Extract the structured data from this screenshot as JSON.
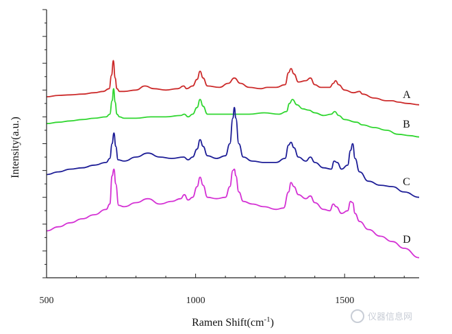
{
  "chart_data": {
    "type": "line",
    "title": "",
    "xlabel": "Ramen Shift(cm",
    "xlabel_sup": "-1",
    "xlabel_tail": ")",
    "ylabel": "Intensity(a.u.)",
    "xlim": [
      500,
      1750
    ],
    "ylim": [
      0,
      10
    ],
    "x_ticks": [
      500,
      1000,
      1500
    ],
    "y_minor_ticks": 20,
    "grid": false,
    "legend": "inline-right",
    "colors": {
      "A": "#cc2a2a",
      "B": "#2fd62f",
      "C": "#1c1c96",
      "D": "#d430d4"
    },
    "series": [
      {
        "name": "A",
        "x": [
          500,
          540,
          580,
          620,
          660,
          690,
          710,
          718,
          724,
          730,
          736,
          745,
          760,
          800,
          830,
          860,
          900,
          940,
          960,
          970,
          990,
          1005,
          1015,
          1025,
          1040,
          1080,
          1110,
          1130,
          1150,
          1180,
          1220,
          1240,
          1270,
          1300,
          1312,
          1320,
          1330,
          1345,
          1370,
          1385,
          1400,
          1420,
          1450,
          1462,
          1470,
          1480,
          1500,
          1530,
          1550,
          1560,
          1600,
          1640,
          1660,
          1680,
          1710,
          1750
        ],
        "y": [
          6.75,
          6.8,
          6.82,
          6.85,
          6.9,
          6.95,
          7.05,
          7.55,
          8.1,
          7.45,
          7.05,
          6.95,
          6.95,
          7.0,
          7.15,
          7.05,
          7.0,
          7.05,
          7.15,
          7.05,
          7.15,
          7.4,
          7.7,
          7.45,
          7.15,
          7.1,
          7.25,
          7.45,
          7.25,
          7.1,
          7.05,
          7.1,
          7.1,
          7.2,
          7.65,
          7.8,
          7.6,
          7.3,
          7.35,
          7.45,
          7.2,
          7.1,
          7.1,
          7.25,
          7.35,
          7.2,
          7.0,
          6.9,
          6.95,
          6.85,
          6.7,
          6.6,
          6.6,
          6.55,
          6.5,
          6.45
        ]
      },
      {
        "name": "B",
        "x": [
          500,
          540,
          580,
          620,
          660,
          700,
          712,
          720,
          725,
          730,
          736,
          745,
          760,
          800,
          850,
          900,
          950,
          962,
          975,
          990,
          1005,
          1015,
          1025,
          1040,
          1080,
          1130,
          1180,
          1230,
          1280,
          1305,
          1315,
          1325,
          1340,
          1360,
          1380,
          1400,
          1430,
          1455,
          1467,
          1480,
          1500,
          1540,
          1560,
          1600,
          1640,
          1680,
          1720,
          1750
        ],
        "y": [
          5.75,
          5.8,
          5.85,
          5.9,
          5.95,
          6.0,
          6.1,
          6.6,
          7.05,
          6.55,
          6.1,
          6.0,
          5.95,
          5.95,
          6.0,
          6.0,
          6.05,
          6.1,
          6.0,
          6.1,
          6.35,
          6.65,
          6.4,
          6.1,
          6.1,
          6.1,
          6.1,
          6.15,
          6.1,
          6.2,
          6.5,
          6.65,
          6.45,
          6.3,
          6.25,
          6.15,
          6.05,
          6.1,
          6.2,
          6.05,
          5.9,
          5.8,
          5.7,
          5.6,
          5.5,
          5.35,
          5.3,
          5.25
        ]
      },
      {
        "name": "C",
        "x": [
          500,
          540,
          580,
          620,
          660,
          700,
          712,
          720,
          726,
          732,
          740,
          760,
          800,
          840,
          880,
          920,
          960,
          975,
          990,
          1005,
          1015,
          1025,
          1040,
          1070,
          1100,
          1115,
          1125,
          1130,
          1135,
          1145,
          1160,
          1190,
          1230,
          1270,
          1300,
          1312,
          1320,
          1330,
          1345,
          1370,
          1385,
          1400,
          1430,
          1455,
          1465,
          1475,
          1490,
          1510,
          1520,
          1527,
          1535,
          1550,
          1580,
          1620,
          1660,
          1700,
          1750
        ],
        "y": [
          3.85,
          3.95,
          4.05,
          4.1,
          4.2,
          4.3,
          4.45,
          5.0,
          5.4,
          4.9,
          4.4,
          4.35,
          4.5,
          4.65,
          4.5,
          4.45,
          4.5,
          4.4,
          4.5,
          4.8,
          5.15,
          4.9,
          4.55,
          4.45,
          4.55,
          5.0,
          5.95,
          6.35,
          5.95,
          5.0,
          4.5,
          4.35,
          4.3,
          4.3,
          4.45,
          4.95,
          5.05,
          4.85,
          4.5,
          4.35,
          4.5,
          4.3,
          4.1,
          4.05,
          4.35,
          4.3,
          4.05,
          4.2,
          4.75,
          5.0,
          4.45,
          3.95,
          3.6,
          3.45,
          3.4,
          3.2,
          3.0
        ]
      },
      {
        "name": "D",
        "x": [
          500,
          540,
          580,
          620,
          660,
          700,
          712,
          720,
          726,
          732,
          742,
          760,
          800,
          840,
          880,
          920,
          950,
          962,
          975,
          990,
          1005,
          1015,
          1025,
          1040,
          1070,
          1100,
          1115,
          1125,
          1130,
          1135,
          1145,
          1160,
          1190,
          1230,
          1270,
          1295,
          1312,
          1320,
          1330,
          1345,
          1370,
          1385,
          1400,
          1430,
          1450,
          1462,
          1472,
          1490,
          1510,
          1520,
          1527,
          1535,
          1550,
          1580,
          1620,
          1660,
          1700,
          1750
        ],
        "y": [
          1.75,
          1.9,
          2.05,
          2.2,
          2.35,
          2.55,
          2.75,
          3.8,
          4.05,
          3.5,
          2.7,
          2.65,
          2.8,
          2.95,
          2.75,
          2.85,
          2.95,
          3.1,
          2.9,
          3.0,
          3.4,
          3.75,
          3.45,
          3.0,
          2.95,
          3.0,
          3.4,
          4.0,
          4.05,
          3.8,
          3.2,
          2.85,
          2.75,
          2.65,
          2.55,
          2.6,
          3.2,
          3.55,
          3.4,
          3.1,
          2.95,
          3.05,
          2.8,
          2.55,
          2.5,
          2.75,
          2.65,
          2.4,
          2.5,
          2.85,
          2.8,
          2.4,
          2.1,
          1.8,
          1.55,
          1.35,
          1.1,
          0.75
        ]
      }
    ],
    "labels": [
      {
        "series": "A",
        "text": "A",
        "x": 1695,
        "y": 6.7
      },
      {
        "series": "B",
        "text": "B",
        "x": 1695,
        "y": 5.6
      },
      {
        "series": "C",
        "text": "C",
        "x": 1695,
        "y": 3.45
      },
      {
        "series": "D",
        "text": "D",
        "x": 1695,
        "y": 1.3
      }
    ]
  },
  "watermark": {
    "text": "仪器信息网"
  }
}
